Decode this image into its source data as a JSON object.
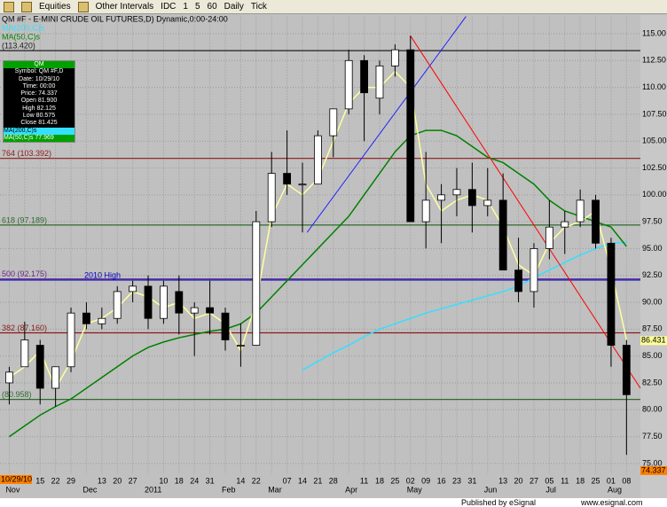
{
  "toolbar": {
    "items": [
      "Equities",
      "Other Intervals",
      "IDC",
      "1",
      "5",
      "60",
      "Daily",
      "Tick"
    ]
  },
  "chart_data": {
    "type": "candlestick",
    "title": "QM #F - E-MINI CRUDE OIL FUTURES,D) Dynamic,0:00-24:00",
    "categories": [
      null,
      "08",
      "15",
      "22",
      "29",
      null,
      "13",
      "20",
      "27",
      null,
      "10",
      "18",
      "24",
      "31",
      null,
      "14",
      "22",
      null,
      "07",
      "14",
      "21",
      "28",
      null,
      "11",
      "18",
      "25",
      "02",
      "09",
      "16",
      "23",
      "31",
      null,
      "13",
      "20",
      "27",
      "05",
      "11",
      "18",
      "25",
      "01",
      "08"
    ],
    "month_labels": [
      {
        "at": 0,
        "label": "Nov"
      },
      {
        "at": 5,
        "label": "Dec"
      },
      {
        "at": 9,
        "label": "2011"
      },
      {
        "at": 14,
        "label": "Feb"
      },
      {
        "at": 17,
        "label": "Mar"
      },
      {
        "at": 22,
        "label": "Apr"
      },
      {
        "at": 26,
        "label": "May"
      },
      {
        "at": 31,
        "label": "Jun"
      },
      {
        "at": 35,
        "label": "Jul"
      },
      {
        "at": 39,
        "label": "Aug"
      }
    ],
    "open": [
      82.5,
      84,
      86,
      82,
      84,
      89,
      88,
      88.5,
      91,
      91.5,
      88.5,
      91,
      89,
      89.5,
      89,
      86,
      86,
      97.5,
      102,
      101,
      101,
      105.5,
      108,
      112.5,
      109,
      112,
      113.5,
      97.5,
      99.5,
      100,
      100.5,
      99,
      99.5,
      93,
      91,
      95,
      97,
      97.5,
      99.5,
      95.5,
      86
    ],
    "high": [
      84,
      88.2,
      86.5,
      84,
      89.5,
      90,
      89.5,
      91.5,
      92,
      92.5,
      92,
      92.5,
      90,
      92,
      89.5,
      88,
      98.5,
      104,
      106,
      103,
      106,
      108,
      113.5,
      113,
      112.5,
      114,
      114.8,
      104,
      101,
      102.5,
      103,
      102.5,
      102,
      96,
      95.5,
      99.5,
      98.5,
      100.5,
      100,
      96,
      86.5
    ],
    "low": [
      80.5,
      84,
      80.5,
      80.3,
      83.5,
      87.5,
      87.5,
      88,
      90,
      87.5,
      88,
      87,
      85,
      87,
      85.5,
      84,
      86,
      97,
      100,
      96.5,
      101,
      103.5,
      107.5,
      105,
      107.5,
      111,
      97.5,
      95,
      95.5,
      98,
      96.5,
      98,
      93,
      90,
      89.5,
      94,
      94.5,
      97,
      95,
      84,
      75.8
    ],
    "close": [
      83.5,
      86.5,
      82,
      84,
      89,
      88,
      88.5,
      91,
      91.5,
      88.5,
      91.5,
      89,
      89.5,
      89,
      86.5,
      86,
      97.5,
      102,
      101,
      101,
      105.5,
      108,
      112.5,
      109.5,
      112,
      113.5,
      97.5,
      99.5,
      100,
      100.5,
      99,
      99.5,
      93,
      91,
      95,
      97,
      97.5,
      99.5,
      95.5,
      86,
      81.4
    ],
    "up_color": "#ffffff",
    "down_color": "#000000",
    "overlays": [
      {
        "name": "MA(200,C)s",
        "color": "#33e0ff",
        "values": [
          null,
          null,
          null,
          null,
          null,
          null,
          null,
          null,
          null,
          null,
          null,
          null,
          null,
          null,
          null,
          null,
          null,
          null,
          null,
          83.7,
          84.5,
          85.3,
          86,
          86.8,
          87.5,
          88,
          88.5,
          89,
          89.4,
          89.8,
          90.2,
          90.6,
          91,
          91.5,
          92.3,
          93,
          93.7,
          94.4,
          95,
          95.5,
          95.6
        ]
      },
      {
        "name": "MA(50,C)s",
        "color": "#008000",
        "values": [
          77.5,
          78.5,
          79.5,
          80.3,
          81,
          82,
          83,
          84,
          85,
          85.8,
          86.3,
          86.7,
          87,
          87.3,
          87.5,
          88,
          89,
          90.5,
          92,
          93.5,
          95,
          96.5,
          98,
          100,
          102,
          104,
          105.5,
          106,
          106,
          105.5,
          104.5,
          103.5,
          103,
          102,
          101,
          99.5,
          98.5,
          98,
          97.5,
          97,
          95.2
        ]
      },
      {
        "color": "#ffffa0",
        "values": [
          83,
          84,
          85.5,
          82,
          84.5,
          88,
          88.5,
          89.5,
          91,
          90.5,
          89.5,
          90,
          88.5,
          89,
          88,
          85.5,
          90,
          98,
          101,
          100,
          101.5,
          105,
          108.5,
          110,
          110,
          111.5,
          110,
          101,
          98.5,
          99.5,
          100,
          99.5,
          97,
          93.5,
          92.5,
          95.5,
          97,
          97.5,
          98.5,
          93,
          86.5
        ]
      }
    ],
    "levels": [
      {
        "value": 113.42,
        "label": "(113.420)",
        "color": "#202020"
      },
      {
        "value": 103.392,
        "label": "764 (103.392)",
        "color": "#8b1a1a"
      },
      {
        "value": 97.189,
        "label": "618 (97.189)",
        "color": "#2e6b2e"
      },
      {
        "value": 92.175,
        "label": "500 (92.175)",
        "color": "#6a2a8a"
      },
      {
        "value": 92.07,
        "label": "2010 High",
        "color": "#0000c0"
      },
      {
        "value": 87.16,
        "label": "382 (87.160)",
        "color": "#8b1a1a"
      },
      {
        "value": 80.958,
        "label": "(80.958)",
        "color": "#2e6b2e"
      }
    ],
    "trend_lines": [
      {
        "color": "#2020ff",
        "x": [
          19.3,
          29.6
        ],
        "y": [
          96.5,
          116.6
        ]
      },
      {
        "color": "#ff0000",
        "x": [
          26,
          40.9
        ],
        "y": [
          114.8,
          82
        ]
      }
    ],
    "price_tags": [
      {
        "value": 86.431,
        "label": "86.431",
        "color": "#ffff99"
      },
      {
        "value": 74.337,
        "label": "74.337",
        "color": "#ff8000"
      }
    ],
    "date_tag": "10/29/10",
    "ylim": [
      74,
      116.6
    ],
    "yticks": [
      {
        "value": 115,
        "label": "115.00"
      },
      {
        "value": 112.5,
        "label": "112.50"
      },
      {
        "value": 110,
        "label": "110.00"
      },
      {
        "value": 107.5,
        "label": "107.50"
      },
      {
        "value": 105,
        "label": "105.00"
      },
      {
        "value": 102.5,
        "label": "102.50"
      },
      {
        "value": 100,
        "label": "100.00"
      },
      {
        "value": 97.5,
        "label": "97.50"
      },
      {
        "value": 95,
        "label": "95.00"
      },
      {
        "value": 92.5,
        "label": "92.50"
      },
      {
        "value": 90,
        "label": "90.00"
      },
      {
        "value": 87.5,
        "label": "87.50"
      },
      {
        "value": 85,
        "label": "85.00"
      },
      {
        "value": 82.5,
        "label": "82.50"
      },
      {
        "value": 80,
        "label": "80.00"
      },
      {
        "value": 77.5,
        "label": "77.50"
      },
      {
        "value": 75,
        "label": "75.00"
      }
    ],
    "grid": true
  },
  "data_window": {
    "header": "QM",
    "rows": [
      "Symbol: QM #F,D",
      "Date: 10/29/10",
      "Time: 00:00",
      "Price: 74.337",
      "Open 81.900",
      "High 82.125",
      "Low 80.575",
      "Close 81.425"
    ],
    "ma_rows": [
      "MA(200,C)s",
      "MA(50,C)s 77.969"
    ]
  },
  "footer": {
    "left": "Published by eSignal",
    "right": "www.esignal.com"
  }
}
